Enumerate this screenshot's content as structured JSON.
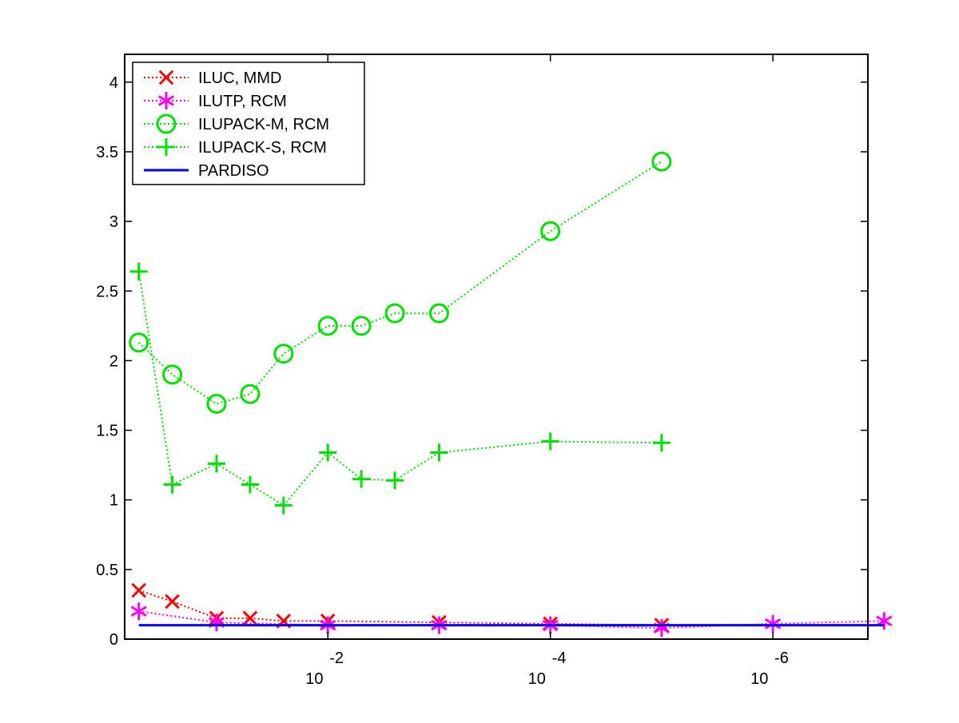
{
  "chart_data": {
    "type": "line",
    "title": "",
    "xlabel": "",
    "ylabel": "",
    "x_scale": "log (reversed; x = drop tolerance)",
    "xlim": [
      0.67,
      1.4e-07
    ],
    "ylim": [
      0,
      4.2
    ],
    "grid": false,
    "legend_position": "top-left",
    "y_ticks": [
      {
        "value": 0,
        "label": "0"
      },
      {
        "value": 0.5,
        "label": "0.5"
      },
      {
        "value": 1,
        "label": "1"
      },
      {
        "value": 1.5,
        "label": "1.5"
      },
      {
        "value": 2,
        "label": "2"
      },
      {
        "value": 2.5,
        "label": "2.5"
      },
      {
        "value": 3,
        "label": "3"
      },
      {
        "value": 3.5,
        "label": "3.5"
      },
      {
        "value": 4,
        "label": "4"
      }
    ],
    "x_ticks": [
      {
        "value": 0.01,
        "base": "10",
        "exponent": "-2"
      },
      {
        "value": 0.0001,
        "base": "10",
        "exponent": "-4"
      },
      {
        "value": 1e-06,
        "base": "10",
        "exponent": "-6"
      }
    ],
    "series": [
      {
        "name": "ILUC, MMD",
        "color": "#ff0000",
        "marker": "x",
        "x": [
          0.5,
          0.25,
          0.1,
          0.05,
          0.025,
          0.01,
          0.001,
          0.0001,
          1e-05
        ],
        "y": [
          0.35,
          0.27,
          0.15,
          0.15,
          0.13,
          0.13,
          0.12,
          0.11,
          0.1
        ]
      },
      {
        "name": "ILUTP, RCM",
        "color": "#ff00ff",
        "marker": "asterisk",
        "x": [
          0.5,
          0.1,
          0.01,
          0.001,
          0.0001,
          1e-05,
          1e-06,
          1e-07
        ],
        "y": [
          0.2,
          0.12,
          0.1,
          0.1,
          0.1,
          0.08,
          0.11,
          0.13
        ]
      },
      {
        "name": "ILUPACK-M, RCM",
        "color": "#00e000",
        "marker": "circle",
        "x": [
          0.5,
          0.25,
          0.1,
          0.05,
          0.025,
          0.01,
          0.005,
          0.0025,
          0.001,
          0.0001,
          1e-05
        ],
        "y": [
          2.13,
          1.9,
          1.69,
          1.76,
          2.05,
          2.25,
          2.25,
          2.34,
          2.34,
          2.93,
          3.43
        ]
      },
      {
        "name": "ILUPACK-S, RCM",
        "color": "#00e000",
        "marker": "plus",
        "x": [
          0.5,
          0.25,
          0.1,
          0.05,
          0.025,
          0.01,
          0.005,
          0.0025,
          0.001,
          0.0001,
          1e-05
        ],
        "y": [
          2.64,
          1.11,
          1.26,
          1.11,
          0.96,
          1.34,
          1.15,
          1.14,
          1.34,
          1.42,
          1.41
        ]
      },
      {
        "name": "PARDISO",
        "color": "#0000ff",
        "marker": "none",
        "x": [
          0.5,
          1e-07
        ],
        "y": [
          0.1,
          0.1
        ]
      }
    ]
  }
}
